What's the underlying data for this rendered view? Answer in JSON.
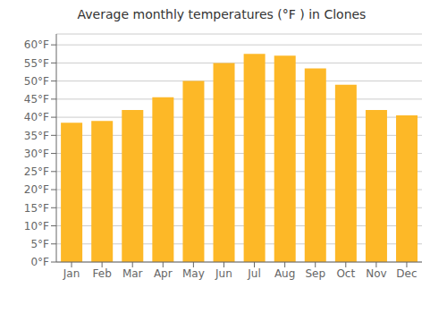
{
  "chart_data": {
    "type": "bar",
    "title": "Average monthly temperatures (°F ) in Clones",
    "categories": [
      "Jan",
      "Feb",
      "Mar",
      "Apr",
      "May",
      "Jun",
      "Jul",
      "Aug",
      "Sep",
      "Oct",
      "Nov",
      "Dec"
    ],
    "values": [
      38.5,
      39.0,
      42.0,
      45.5,
      50.0,
      55.0,
      57.5,
      57.0,
      53.5,
      49.0,
      42.0,
      40.5
    ],
    "color": "#FDB827",
    "ylim": [
      0,
      63
    ],
    "yticks": [
      {
        "value": 0,
        "label": "0°F"
      },
      {
        "value": 5,
        "label": "5°F"
      },
      {
        "value": 10,
        "label": "10°F"
      },
      {
        "value": 15,
        "label": "15°F"
      },
      {
        "value": 20,
        "label": "20°F"
      },
      {
        "value": 25,
        "label": "25°F"
      },
      {
        "value": 30,
        "label": "30°F"
      },
      {
        "value": 35,
        "label": "35°F"
      },
      {
        "value": 40,
        "label": "40°F"
      },
      {
        "value": 45,
        "label": "45°F"
      },
      {
        "value": 50,
        "label": "50°F"
      },
      {
        "value": 55,
        "label": "55°F"
      },
      {
        "value": 60,
        "label": "60°F"
      }
    ],
    "grid": true
  }
}
